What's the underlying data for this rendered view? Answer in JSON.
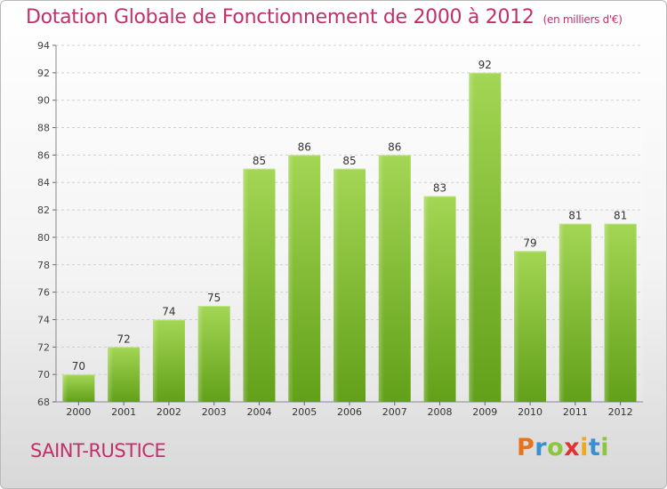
{
  "chart_data": {
    "type": "bar",
    "title": "Dotation Globale de Fonctionnement de 2000 à 2012",
    "subtitle": "(en milliers d'€)",
    "categories": [
      "2000",
      "2001",
      "2002",
      "2003",
      "2004",
      "2005",
      "2006",
      "2007",
      "2008",
      "2009",
      "2010",
      "2011",
      "2012"
    ],
    "values": [
      70,
      72,
      74,
      75,
      85,
      86,
      85,
      86,
      83,
      92,
      79,
      81,
      81
    ],
    "ylim": [
      68,
      94
    ],
    "yticks": [
      68,
      70,
      72,
      74,
      76,
      78,
      80,
      82,
      84,
      86,
      88,
      90,
      92,
      94
    ],
    "grid": true,
    "bar_color": "#7cb82f"
  },
  "commune": "SAINT-RUSTICE",
  "logo": {
    "letters": [
      "P",
      "r",
      "o",
      "x",
      "i",
      "t",
      "i"
    ],
    "colors": [
      "#e8731d",
      "#3a8fd0",
      "#8cc63e",
      "#e2322f",
      "#f0a81c",
      "#3a8fd0",
      "#8cc63e"
    ]
  }
}
